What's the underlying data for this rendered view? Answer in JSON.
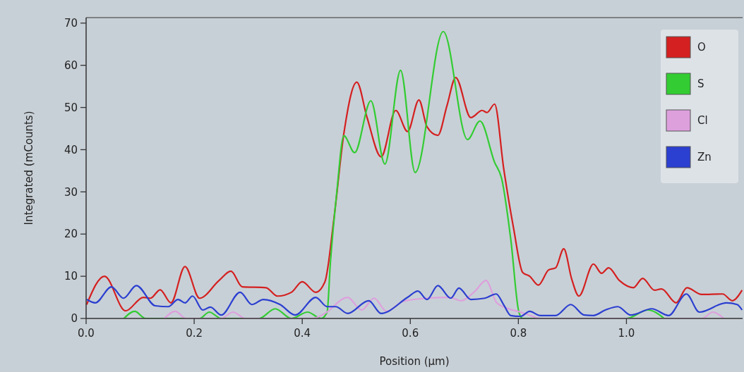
{
  "chart_data": {
    "type": "line",
    "xlabel": "Position (µm)",
    "ylabel": "Integrated (mCounts)",
    "xlim": [
      0,
      1.215
    ],
    "ylim": [
      0,
      71.3
    ],
    "xticks": [
      {
        "value": 0,
        "label": "0.0"
      },
      {
        "value": 0.2,
        "label": "0.2"
      },
      {
        "value": 0.4,
        "label": "0.4"
      },
      {
        "value": 0.6,
        "label": "0.6"
      },
      {
        "value": 0.8,
        "label": "0.8"
      },
      {
        "value": 1.0,
        "label": "1.0"
      }
    ],
    "yticks": [
      0,
      10,
      20,
      30,
      40,
      50,
      60,
      70
    ],
    "grid": false,
    "legend": "top right",
    "marker": "none",
    "line_style": "solid",
    "series": [
      {
        "name": "O",
        "color": "#d42020",
        "x": [
          0.001,
          0.034,
          0.073,
          0.106,
          0.119,
          0.137,
          0.157,
          0.183,
          0.21,
          0.246,
          0.268,
          0.289,
          0.333,
          0.354,
          0.38,
          0.4,
          0.425,
          0.442,
          0.459,
          0.477,
          0.501,
          0.52,
          0.546,
          0.573,
          0.595,
          0.616,
          0.631,
          0.651,
          0.668,
          0.684,
          0.712,
          0.733,
          0.742,
          0.756,
          0.773,
          0.791,
          0.808,
          0.821,
          0.837,
          0.856,
          0.869,
          0.884,
          0.899,
          0.912,
          0.939,
          0.954,
          0.967,
          0.987,
          1.013,
          1.03,
          1.052,
          1.065,
          1.092,
          1.112,
          1.139,
          1.178,
          1.196,
          1.214
        ],
        "values": [
          3.3,
          10,
          1.8,
          5,
          4.8,
          6.8,
          3.7,
          12.3,
          4.8,
          9,
          11.2,
          7.5,
          7.3,
          5.3,
          6.2,
          8.7,
          6.2,
          8.7,
          24,
          43.8,
          56,
          47.6,
          38.3,
          49.3,
          44.3,
          51.8,
          45.4,
          43.4,
          50.5,
          57.1,
          47.6,
          49.3,
          48.8,
          50.8,
          35.4,
          21.5,
          10.9,
          10,
          7.9,
          11.5,
          12,
          16.5,
          9.2,
          5.3,
          12.9,
          10.7,
          12,
          9,
          7.3,
          9.5,
          6.7,
          7,
          3.7,
          7.3,
          5.7,
          5.8,
          4.2,
          6.7
        ]
      },
      {
        "name": "S",
        "color": "#33cc33",
        "x": [
          0.07,
          0.09,
          0.11,
          0.21,
          0.228,
          0.25,
          0.32,
          0.35,
          0.38,
          0.41,
          0.435,
          0.446,
          0.452,
          0.464,
          0.477,
          0.497,
          0.527,
          0.553,
          0.582,
          0.609,
          0.661,
          0.706,
          0.729,
          0.756,
          0.769,
          0.786,
          0.801,
          0.808,
          1.0,
          1.04,
          1.07
        ],
        "values": [
          0,
          1.7,
          0,
          0,
          1.5,
          0,
          0,
          2.3,
          0,
          1.5,
          0,
          1.5,
          13,
          30,
          43.3,
          39.3,
          51.6,
          36.6,
          58.8,
          34.6,
          68,
          42.4,
          46.8,
          37,
          33.2,
          18.7,
          1.5,
          0,
          0,
          2,
          0
        ]
      },
      {
        "name": "Cl",
        "color": "#dda0dd",
        "x": [
          0.145,
          0.165,
          0.185,
          0.25,
          0.272,
          0.295,
          0.42,
          0.442,
          0.484,
          0.51,
          0.533,
          0.556,
          0.586,
          0.629,
          0.673,
          0.694,
          0.72,
          0.74,
          0.76,
          0.782,
          0.804,
          0.82,
          0.84,
          1.14,
          1.16,
          1.18
        ],
        "values": [
          0,
          1.7,
          0,
          0,
          1.5,
          0,
          0,
          1.2,
          5,
          2,
          4.8,
          1.7,
          4,
          4.8,
          5,
          4.2,
          6.5,
          9,
          3.7,
          2.3,
          1.5,
          0.8,
          0,
          0,
          1.5,
          0
        ]
      },
      {
        "name": "Zn",
        "color": "#2b3fd0",
        "x": [
          0.001,
          0.017,
          0.047,
          0.069,
          0.093,
          0.128,
          0.152,
          0.17,
          0.183,
          0.197,
          0.216,
          0.23,
          0.25,
          0.285,
          0.307,
          0.328,
          0.359,
          0.387,
          0.425,
          0.446,
          0.462,
          0.484,
          0.523,
          0.546,
          0.595,
          0.614,
          0.631,
          0.651,
          0.675,
          0.69,
          0.712,
          0.738,
          0.759,
          0.773,
          0.786,
          0.804,
          0.821,
          0.84,
          0.869,
          0.897,
          0.922,
          0.939,
          0.961,
          0.984,
          1.008,
          1.047,
          1.078,
          1.111,
          1.135,
          1.185,
          1.205,
          1.214
        ],
        "values": [
          4.5,
          3.7,
          7.5,
          4.8,
          7.8,
          3,
          2.8,
          4.5,
          3.7,
          5.3,
          2,
          2.7,
          0.8,
          6.2,
          3.3,
          4.5,
          3.3,
          0.8,
          5,
          2.8,
          2.8,
          1.2,
          4.2,
          1.2,
          5,
          6.5,
          4.5,
          7.8,
          4.8,
          7.2,
          4.5,
          4.8,
          5.8,
          3.2,
          0.7,
          0.5,
          1.7,
          0.7,
          0.7,
          3.3,
          0.8,
          0.7,
          2,
          2.8,
          0.8,
          2.3,
          0.7,
          5.8,
          1.5,
          3.7,
          3.3,
          2
        ]
      }
    ]
  }
}
